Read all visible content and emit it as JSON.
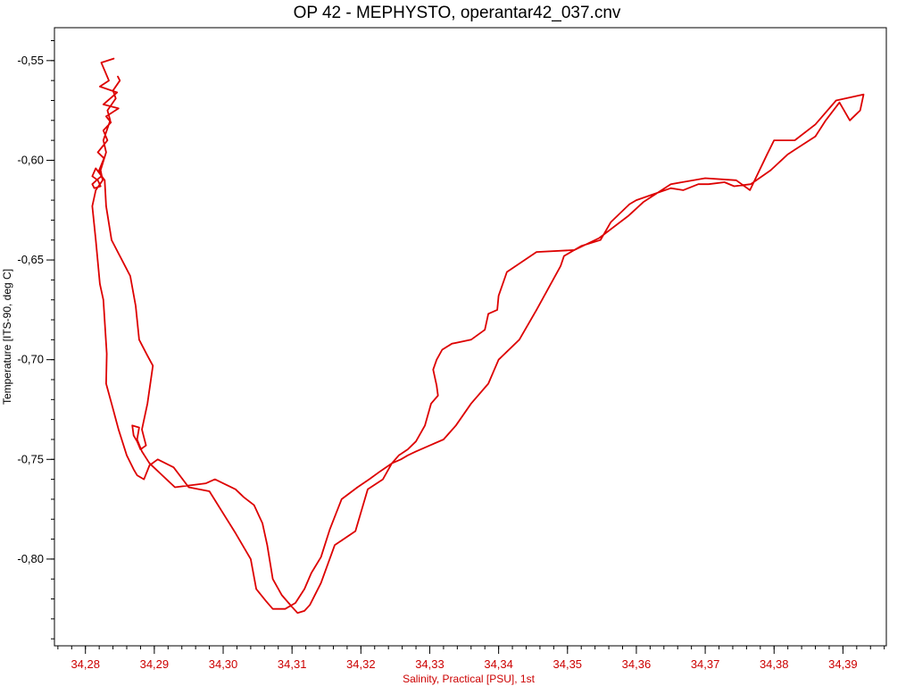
{
  "chart_data": {
    "type": "line",
    "title": "OP 42 - MEPHYSTO, operantar42_037.cnv",
    "xlabel": "Salinity, Practical [PSU], 1st",
    "ylabel": "Temperature [ITS-90, deg C]",
    "xlim": [
      34.2755,
      34.3963
    ],
    "ylim": [
      -0.8435,
      -0.5335
    ],
    "x_ticks": [
      "34,28",
      "34,29",
      "34,30",
      "34,31",
      "34,32",
      "34,33",
      "34,34",
      "34,35",
      "34,36",
      "34,37",
      "34,38",
      "34,39"
    ],
    "x_tick_values": [
      34.28,
      34.29,
      34.3,
      34.31,
      34.32,
      34.33,
      34.34,
      34.35,
      34.36,
      34.37,
      34.38,
      34.39
    ],
    "y_ticks": [
      "-0,55",
      "-0,60",
      "-0,65",
      "-0,70",
      "-0,75",
      "-0,80"
    ],
    "y_tick_values": [
      -0.55,
      -0.6,
      -0.65,
      -0.7,
      -0.75,
      -0.8
    ],
    "grid": false,
    "line_color": "#dd0000",
    "series": [
      {
        "x": [
          34.2841,
          34.2823,
          34.2834,
          34.2821,
          34.2846,
          34.2826,
          34.2848,
          34.283,
          34.2837,
          34.2826,
          34.2832,
          34.2818,
          34.2827,
          34.282,
          34.2823,
          34.2816,
          34.281,
          34.2813,
          34.2822,
          34.2818,
          34.281,
          34.2815,
          34.2828,
          34.283,
          34.2838,
          34.2865,
          34.2873,
          34.2878,
          34.289,
          34.2898,
          34.289,
          34.2882,
          34.2888,
          34.288,
          34.2875,
          34.287,
          34.2868,
          34.2878,
          34.2875,
          34.2882,
          34.2893,
          34.293,
          34.2975,
          34.2988,
          34.3018,
          34.303,
          34.3045,
          34.3057,
          34.3064,
          34.3072,
          34.3085,
          34.31,
          34.3108,
          34.3118,
          34.3126,
          34.3142,
          34.3162,
          34.3192,
          34.321,
          34.3232,
          34.3245,
          34.3255,
          34.3268,
          34.328,
          34.3293,
          34.3302,
          34.3312,
          34.331,
          34.3305,
          34.331,
          34.3318,
          34.3332,
          34.336,
          34.338,
          34.3385,
          34.3398,
          34.34,
          34.3412,
          34.3455,
          34.351,
          34.3546,
          34.3588,
          34.361,
          34.365,
          34.37,
          34.3745,
          34.3765,
          34.379,
          34.38,
          34.383,
          34.386,
          34.389,
          34.393,
          34.3925,
          34.391,
          34.3895,
          34.3875,
          34.386,
          34.382,
          34.3795,
          34.3766,
          34.3742,
          34.3728,
          34.3705,
          34.369,
          34.3668,
          34.365,
          34.3625,
          34.36,
          34.359,
          34.3563,
          34.3548,
          34.352,
          34.3495,
          34.349,
          34.3455,
          34.343,
          34.34,
          34.3385,
          34.336,
          34.3338,
          34.332,
          34.33,
          34.328,
          34.3268,
          34.3258,
          34.3245,
          34.3228,
          34.3212,
          34.3195,
          34.3172,
          34.3155,
          34.3142,
          34.3128,
          34.3118,
          34.3105,
          34.309,
          34.3072,
          34.3062,
          34.3048,
          34.304,
          34.3018,
          34.298,
          34.295,
          34.2928,
          34.2905,
          34.2893,
          34.2885,
          34.2875,
          34.287,
          34.286,
          34.2848,
          34.2838,
          34.283,
          34.2831,
          34.2826,
          34.2821,
          34.2815,
          34.281,
          34.2815,
          34.2825,
          34.2822,
          34.283,
          34.2826,
          34.2836,
          34.2832,
          34.2844,
          34.284,
          34.285,
          34.2847
        ],
        "y": [
          -0.549,
          -0.551,
          -0.56,
          -0.563,
          -0.566,
          -0.572,
          -0.574,
          -0.578,
          -0.581,
          -0.585,
          -0.59,
          -0.596,
          -0.599,
          -0.605,
          -0.608,
          -0.61,
          -0.612,
          -0.614,
          -0.613,
          -0.61,
          -0.608,
          -0.604,
          -0.61,
          -0.623,
          -0.64,
          -0.658,
          -0.673,
          -0.69,
          -0.698,
          -0.703,
          -0.722,
          -0.735,
          -0.743,
          -0.745,
          -0.741,
          -0.738,
          -0.733,
          -0.734,
          -0.74,
          -0.746,
          -0.752,
          -0.764,
          -0.762,
          -0.76,
          -0.765,
          -0.769,
          -0.773,
          -0.782,
          -0.793,
          -0.81,
          -0.818,
          -0.824,
          -0.827,
          -0.826,
          -0.823,
          -0.812,
          -0.793,
          -0.786,
          -0.765,
          -0.76,
          -0.752,
          -0.748,
          -0.745,
          -0.741,
          -0.733,
          -0.722,
          -0.718,
          -0.713,
          -0.705,
          -0.7,
          -0.695,
          -0.692,
          -0.69,
          -0.685,
          -0.677,
          -0.675,
          -0.668,
          -0.656,
          -0.646,
          -0.645,
          -0.639,
          -0.628,
          -0.621,
          -0.612,
          -0.609,
          -0.61,
          -0.615,
          -0.597,
          -0.59,
          -0.59,
          -0.582,
          -0.57,
          -0.567,
          -0.575,
          -0.58,
          -0.571,
          -0.58,
          -0.588,
          -0.597,
          -0.605,
          -0.612,
          -0.613,
          -0.611,
          -0.612,
          -0.612,
          -0.615,
          -0.614,
          -0.617,
          -0.62,
          -0.622,
          -0.631,
          -0.64,
          -0.643,
          -0.648,
          -0.653,
          -0.675,
          -0.69,
          -0.7,
          -0.712,
          -0.722,
          -0.733,
          -0.74,
          -0.743,
          -0.746,
          -0.748,
          -0.75,
          -0.752,
          -0.756,
          -0.76,
          -0.764,
          -0.77,
          -0.785,
          -0.799,
          -0.807,
          -0.815,
          -0.822,
          -0.825,
          -0.825,
          -0.821,
          -0.815,
          -0.8,
          -0.787,
          -0.766,
          -0.764,
          -0.754,
          -0.75,
          -0.753,
          -0.76,
          -0.758,
          -0.755,
          -0.748,
          -0.735,
          -0.722,
          -0.712,
          -0.697,
          -0.67,
          -0.662,
          -0.64,
          -0.623,
          -0.615,
          -0.61,
          -0.605,
          -0.596,
          -0.59,
          -0.58,
          -0.575,
          -0.569,
          -0.565,
          -0.56,
          -0.558
        ]
      }
    ]
  }
}
